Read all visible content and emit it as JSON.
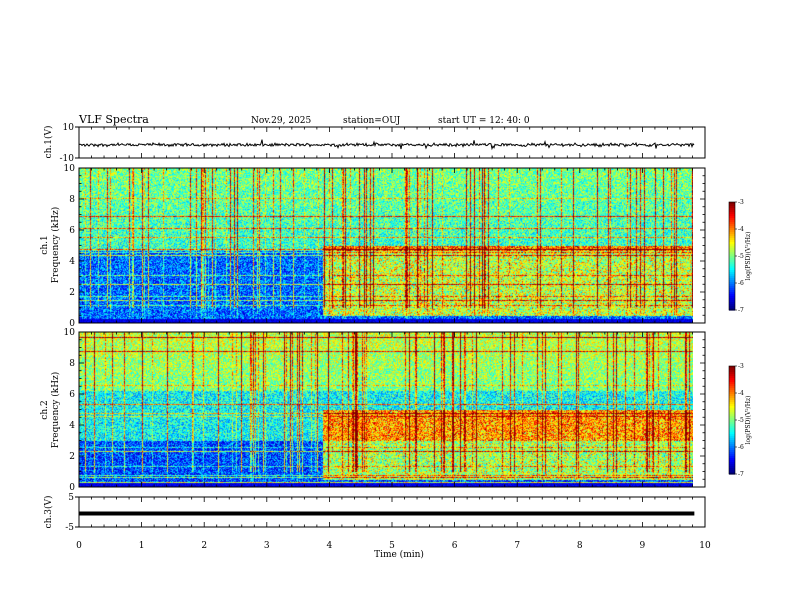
{
  "chart_data": {
    "type": "heatmap",
    "title": "VLF Spectra",
    "date": "Nov.29, 2025",
    "station": "station=OUJ",
    "start_ut": "start  UT =   12: 40: 0",
    "xlabel": "Time  (min)",
    "xlim": [
      0,
      10
    ],
    "x_ticks": [
      "0",
      "1",
      "2",
      "3",
      "4",
      "5",
      "6",
      "7",
      "8",
      "9",
      "10"
    ],
    "data_end_min": 9.83,
    "panels": [
      {
        "id": "ch1-wave",
        "kind": "waveform",
        "ylabel": "ch.1(V)",
        "ylim": [
          -10,
          10
        ],
        "y_ticks": [
          "10",
          "-10"
        ],
        "baseline_v": -1.5
      },
      {
        "id": "ch1-spec",
        "kind": "spectrogram",
        "ylabel_channel": "ch.1",
        "ylabel": "Frequency  (kHz)",
        "ylim": [
          0,
          10
        ],
        "y_ticks": [
          "0",
          "2",
          "4",
          "6",
          "8",
          "10"
        ],
        "activity_onset_min": 3.9,
        "colorbar": {
          "label": "log(PSD)(V²/Hz)",
          "range": [
            -7,
            -3
          ],
          "ticks": [
            "-3",
            "-4",
            "-5",
            "-6",
            "-7"
          ]
        }
      },
      {
        "id": "ch2-spec",
        "kind": "spectrogram",
        "ylabel_channel": "ch.2",
        "ylabel": "Frequency  (kHz)",
        "ylim": [
          0,
          10
        ],
        "y_ticks": [
          "0",
          "2",
          "4",
          "6",
          "8",
          "10"
        ],
        "activity_onset_min": 3.9,
        "colorbar": {
          "label": "log(PSD)(V²/Hz)",
          "range": [
            -7,
            -3
          ],
          "ticks": [
            "-3",
            "-4",
            "-5",
            "-6",
            "-7"
          ]
        }
      },
      {
        "id": "ch3-wave",
        "kind": "waveform",
        "ylabel": "ch.3(V)",
        "ylim": [
          -5,
          5
        ],
        "y_ticks": [
          "5",
          "-5"
        ],
        "baseline_v": -0.5
      }
    ]
  }
}
